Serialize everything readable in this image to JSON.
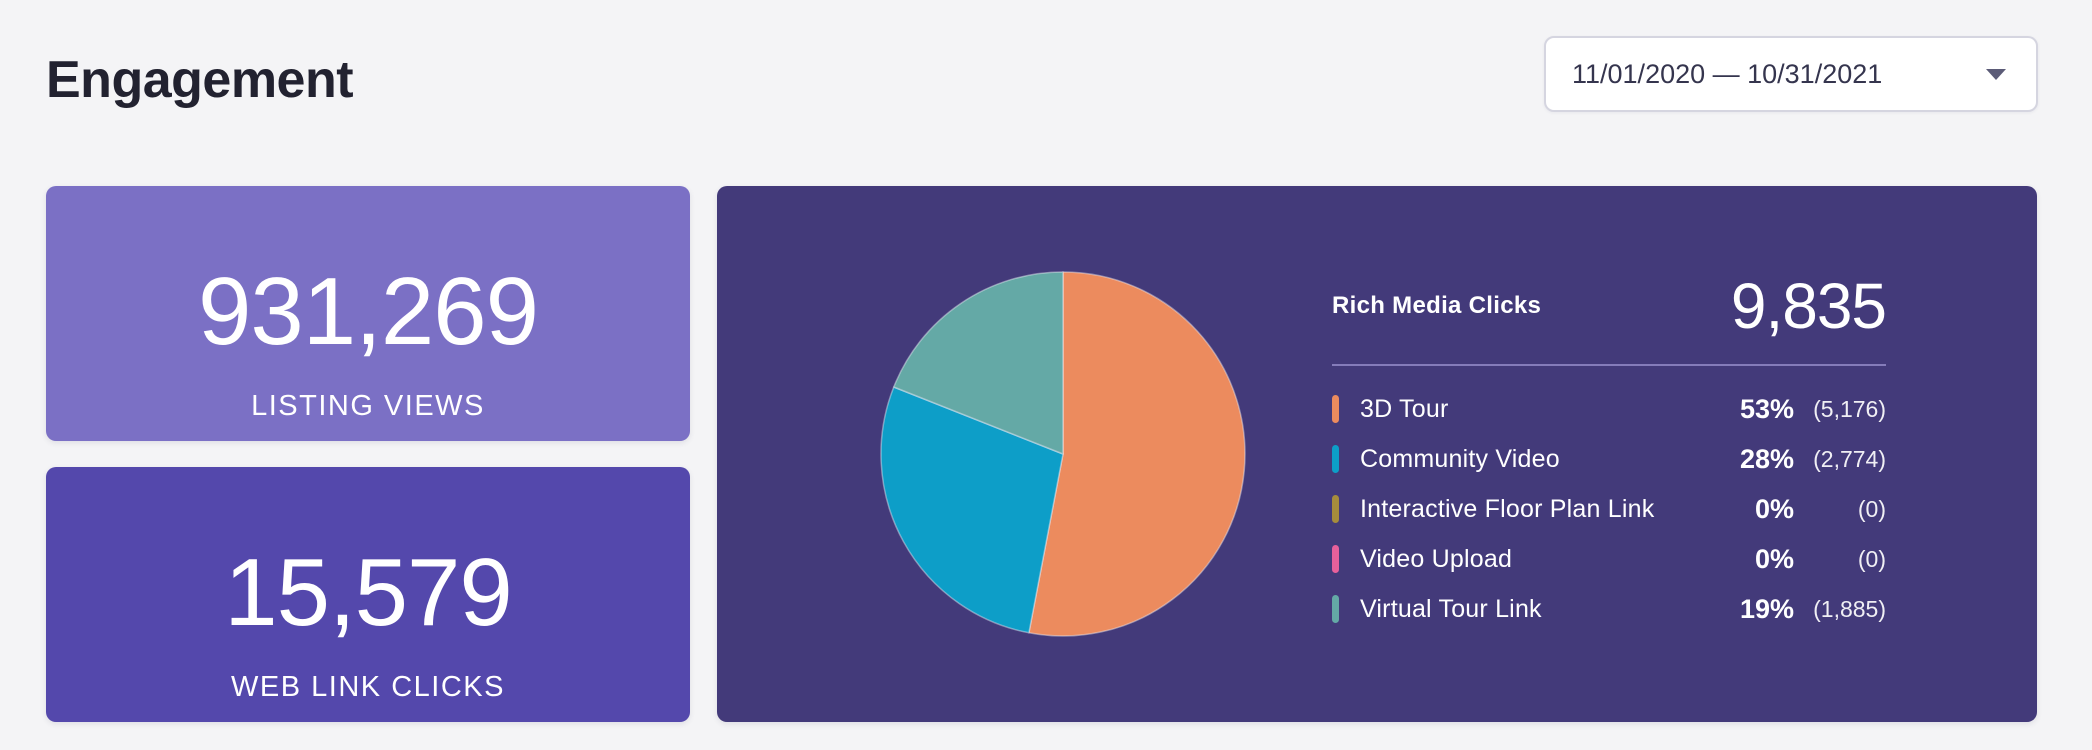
{
  "page": {
    "title": "Engagement",
    "background": "#f4f4f6"
  },
  "date_filter": {
    "value": "11/01/2020 — 10/31/2021"
  },
  "stats": [
    {
      "value": "931,269",
      "label": "LISTING VIEWS",
      "bg": "#7b70c5"
    },
    {
      "value": "15,579",
      "label": "WEB LINK CLICKS",
      "bg": "#5448ac"
    }
  ],
  "rich_media": {
    "panel_bg": "#433a7a",
    "divider_color": "#857cba",
    "title": "Rich Media Clicks",
    "total_label": "9,835"
  },
  "chart_data": {
    "type": "pie",
    "title": "Rich Media Clicks",
    "total": 9835,
    "legend_position": "right",
    "start_angle": "12 o'clock, clockwise",
    "segments": [
      {
        "label": "3D Tour",
        "percent": 53,
        "count": 5176,
        "percent_label": "53%",
        "count_label": "(5,176)",
        "color": "#ec8b5e"
      },
      {
        "label": "Community Video",
        "percent": 28,
        "count": 2774,
        "percent_label": "28%",
        "count_label": "(2,774)",
        "color": "#0d9ec8"
      },
      {
        "label": "Interactive Floor Plan Link",
        "percent": 0,
        "count": 0,
        "percent_label": "0%",
        "count_label": "(0)",
        "color": "#a68c3c"
      },
      {
        "label": "Video Upload",
        "percent": 0,
        "count": 0,
        "percent_label": "0%",
        "count_label": "(0)",
        "color": "#e7609b"
      },
      {
        "label": "Virtual Tour Link",
        "percent": 19,
        "count": 1885,
        "percent_label": "19%",
        "count_label": "(1,885)",
        "color": "#64a9a6"
      }
    ]
  }
}
